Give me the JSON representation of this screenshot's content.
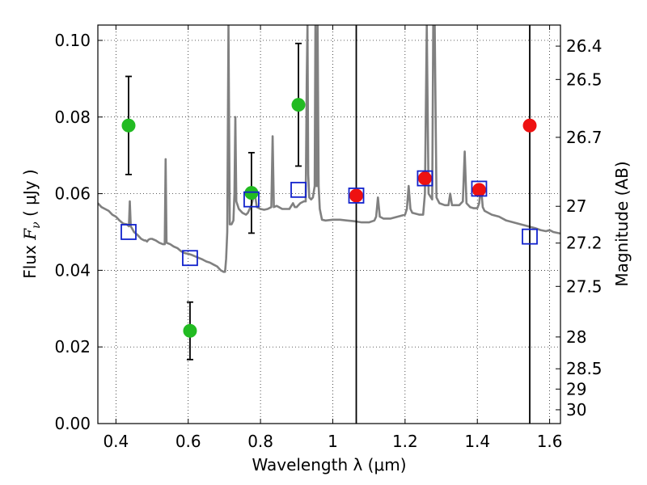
{
  "chart_data": {
    "type": "scatter",
    "xlabel": "Wavelength  λ (μm)",
    "ylabel_prefix": "Flux  ",
    "ylabel_math": "F",
    "ylabel_sub": "ν",
    "ylabel_suffix": "  ( μJy )",
    "ylabel_right": "Magnitude (AB)",
    "xlim": [
      0.35,
      1.63
    ],
    "ylim": [
      0.0,
      0.104
    ],
    "grid": true,
    "x_ticks": [
      0.4,
      0.6,
      0.8,
      1.0,
      1.2,
      1.4,
      1.6
    ],
    "x_tick_labels": [
      "0.4",
      "0.6",
      "0.8",
      "1",
      "1.2",
      "1.4",
      "1.6"
    ],
    "y_ticks": [
      0.0,
      0.02,
      0.04,
      0.06,
      0.08,
      0.1
    ],
    "y_tick_labels": [
      "0.00",
      "0.02",
      "0.04",
      "0.06",
      "0.08",
      "0.10"
    ],
    "magnitude_ticks": [
      {
        "label": "26.4",
        "flux": 0.0985
      },
      {
        "label": "26.5",
        "flux": 0.0898
      },
      {
        "label": "26.7",
        "flux": 0.0747
      },
      {
        "label": "27",
        "flux": 0.0567
      },
      {
        "label": "27.2",
        "flux": 0.0471
      },
      {
        "label": "27.5",
        "flux": 0.0358
      },
      {
        "label": "28",
        "flux": 0.0226
      },
      {
        "label": "28.5",
        "flux": 0.0143
      },
      {
        "label": "29",
        "flux": 0.009
      },
      {
        "label": "30",
        "flux": 0.0036
      }
    ],
    "vertical_lines": [
      1.065,
      1.545
    ],
    "series": [
      {
        "marker": "circle",
        "color": "#22bb22",
        "points": [
          {
            "x": 0.435,
            "y": 0.0778,
            "err": 0.0128
          },
          {
            "x": 0.605,
            "y": 0.0242,
            "err": 0.0075
          },
          {
            "x": 0.775,
            "y": 0.0602,
            "err": 0.0105
          },
          {
            "x": 0.905,
            "y": 0.0832,
            "err": 0.016
          }
        ]
      },
      {
        "marker": "circle",
        "color": "#ee1111",
        "points": [
          {
            "x": 1.065,
            "y": 0.0595
          },
          {
            "x": 1.255,
            "y": 0.064
          },
          {
            "x": 1.405,
            "y": 0.061
          },
          {
            "x": 1.545,
            "y": 0.0778
          }
        ]
      },
      {
        "marker": "square",
        "color": "#1122cc",
        "points": [
          {
            "x": 0.435,
            "y": 0.05
          },
          {
            "x": 0.605,
            "y": 0.0432
          },
          {
            "x": 0.775,
            "y": 0.0585
          },
          {
            "x": 0.905,
            "y": 0.061
          },
          {
            "x": 1.065,
            "y": 0.0595
          },
          {
            "x": 1.255,
            "y": 0.064
          },
          {
            "x": 1.405,
            "y": 0.0613
          },
          {
            "x": 1.545,
            "y": 0.0488
          }
        ]
      }
    ],
    "spectrum": {
      "color": "#808080",
      "points": [
        [
          0.35,
          0.0575
        ],
        [
          0.36,
          0.0565
        ],
        [
          0.37,
          0.056
        ],
        [
          0.38,
          0.0555
        ],
        [
          0.39,
          0.0545
        ],
        [
          0.4,
          0.054
        ],
        [
          0.41,
          0.053
        ],
        [
          0.42,
          0.0522
        ],
        [
          0.43,
          0.052
        ],
        [
          0.436,
          0.0515
        ],
        [
          0.4385,
          0.058
        ],
        [
          0.441,
          0.0515
        ],
        [
          0.45,
          0.05
        ],
        [
          0.46,
          0.0492
        ],
        [
          0.47,
          0.0482
        ],
        [
          0.478,
          0.0478
        ],
        [
          0.482,
          0.0478
        ],
        [
          0.486,
          0.0475
        ],
        [
          0.49,
          0.048
        ],
        [
          0.495,
          0.0482
        ],
        [
          0.5,
          0.0482
        ],
        [
          0.51,
          0.0478
        ],
        [
          0.52,
          0.0472
        ],
        [
          0.53,
          0.0468
        ],
        [
          0.535,
          0.0468
        ],
        [
          0.5375,
          0.069
        ],
        [
          0.54,
          0.0472
        ],
        [
          0.545,
          0.047
        ],
        [
          0.55,
          0.0468
        ],
        [
          0.56,
          0.0462
        ],
        [
          0.57,
          0.0458
        ],
        [
          0.58,
          0.045
        ],
        [
          0.59,
          0.0445
        ],
        [
          0.6,
          0.0443
        ],
        [
          0.61,
          0.044
        ],
        [
          0.62,
          0.0436
        ],
        [
          0.63,
          0.0432
        ],
        [
          0.64,
          0.0428
        ],
        [
          0.65,
          0.0423
        ],
        [
          0.66,
          0.042
        ],
        [
          0.67,
          0.0415
        ],
        [
          0.68,
          0.041
        ],
        [
          0.69,
          0.04
        ],
        [
          0.698,
          0.0396
        ],
        [
          0.702,
          0.0396
        ],
        [
          0.705,
          0.043
        ],
        [
          0.708,
          0.05
        ],
        [
          0.7115,
          0.104
        ],
        [
          0.715,
          0.052
        ],
        [
          0.72,
          0.052
        ],
        [
          0.725,
          0.053
        ],
        [
          0.728,
          0.06
        ],
        [
          0.7305,
          0.08
        ],
        [
          0.733,
          0.058
        ],
        [
          0.74,
          0.056
        ],
        [
          0.75,
          0.055
        ],
        [
          0.76,
          0.0545
        ],
        [
          0.765,
          0.055
        ],
        [
          0.77,
          0.056
        ],
        [
          0.775,
          0.057
        ],
        [
          0.78,
          0.059
        ],
        [
          0.785,
          0.0595
        ],
        [
          0.79,
          0.0565
        ],
        [
          0.8,
          0.056
        ],
        [
          0.81,
          0.0558
        ],
        [
          0.82,
          0.056
        ],
        [
          0.83,
          0.0565
        ],
        [
          0.8335,
          0.075
        ],
        [
          0.837,
          0.0565
        ],
        [
          0.845,
          0.0568
        ],
        [
          0.86,
          0.056
        ],
        [
          0.88,
          0.056
        ],
        [
          0.89,
          0.0575
        ],
        [
          0.895,
          0.0565
        ],
        [
          0.9,
          0.0565
        ],
        [
          0.905,
          0.057
        ],
        [
          0.91,
          0.0575
        ],
        [
          0.92,
          0.058
        ],
        [
          0.925,
          0.058
        ],
        [
          0.928,
          0.09
        ],
        [
          0.93,
          0.104
        ],
        [
          0.932,
          0.065
        ],
        [
          0.935,
          0.059
        ],
        [
          0.94,
          0.0585
        ],
        [
          0.945,
          0.059
        ],
        [
          0.95,
          0.062
        ],
        [
          0.952,
          0.104
        ],
        [
          0.954,
          0.062
        ],
        [
          0.956,
          0.062
        ],
        [
          0.958,
          0.104
        ],
        [
          0.961,
          0.062
        ],
        [
          0.964,
          0.056
        ],
        [
          0.97,
          0.0532
        ],
        [
          0.98,
          0.053
        ],
        [
          1.0,
          0.0532
        ],
        [
          1.02,
          0.0532
        ],
        [
          1.04,
          0.053
        ],
        [
          1.06,
          0.0528
        ],
        [
          1.08,
          0.0525
        ],
        [
          1.1,
          0.0525
        ],
        [
          1.115,
          0.053
        ],
        [
          1.12,
          0.054
        ],
        [
          1.125,
          0.059
        ],
        [
          1.13,
          0.054
        ],
        [
          1.14,
          0.0535
        ],
        [
          1.16,
          0.0535
        ],
        [
          1.18,
          0.054
        ],
        [
          1.2,
          0.0545
        ],
        [
          1.205,
          0.056
        ],
        [
          1.21,
          0.062
        ],
        [
          1.215,
          0.056
        ],
        [
          1.22,
          0.055
        ],
        [
          1.24,
          0.0545
        ],
        [
          1.25,
          0.0545
        ],
        [
          1.255,
          0.06
        ],
        [
          1.26,
          0.104
        ],
        [
          1.265,
          0.06
        ],
        [
          1.275,
          0.0585
        ],
        [
          1.278,
          0.104
        ],
        [
          1.282,
          0.104
        ],
        [
          1.287,
          0.059
        ],
        [
          1.295,
          0.0575
        ],
        [
          1.31,
          0.057
        ],
        [
          1.32,
          0.057
        ],
        [
          1.325,
          0.06
        ],
        [
          1.33,
          0.057
        ],
        [
          1.35,
          0.057
        ],
        [
          1.36,
          0.058
        ],
        [
          1.365,
          0.071
        ],
        [
          1.37,
          0.0575
        ],
        [
          1.38,
          0.0565
        ],
        [
          1.39,
          0.0562
        ],
        [
          1.4,
          0.0562
        ],
        [
          1.405,
          0.0575
        ],
        [
          1.41,
          0.062
        ],
        [
          1.415,
          0.0565
        ],
        [
          1.42,
          0.0555
        ],
        [
          1.44,
          0.0545
        ],
        [
          1.46,
          0.054
        ],
        [
          1.48,
          0.053
        ],
        [
          1.5,
          0.0525
        ],
        [
          1.52,
          0.052
        ],
        [
          1.54,
          0.0515
        ],
        [
          1.56,
          0.051
        ],
        [
          1.575,
          0.0505
        ],
        [
          1.59,
          0.0502
        ],
        [
          1.6,
          0.0505
        ],
        [
          1.61,
          0.05
        ],
        [
          1.63,
          0.0496
        ]
      ]
    }
  }
}
